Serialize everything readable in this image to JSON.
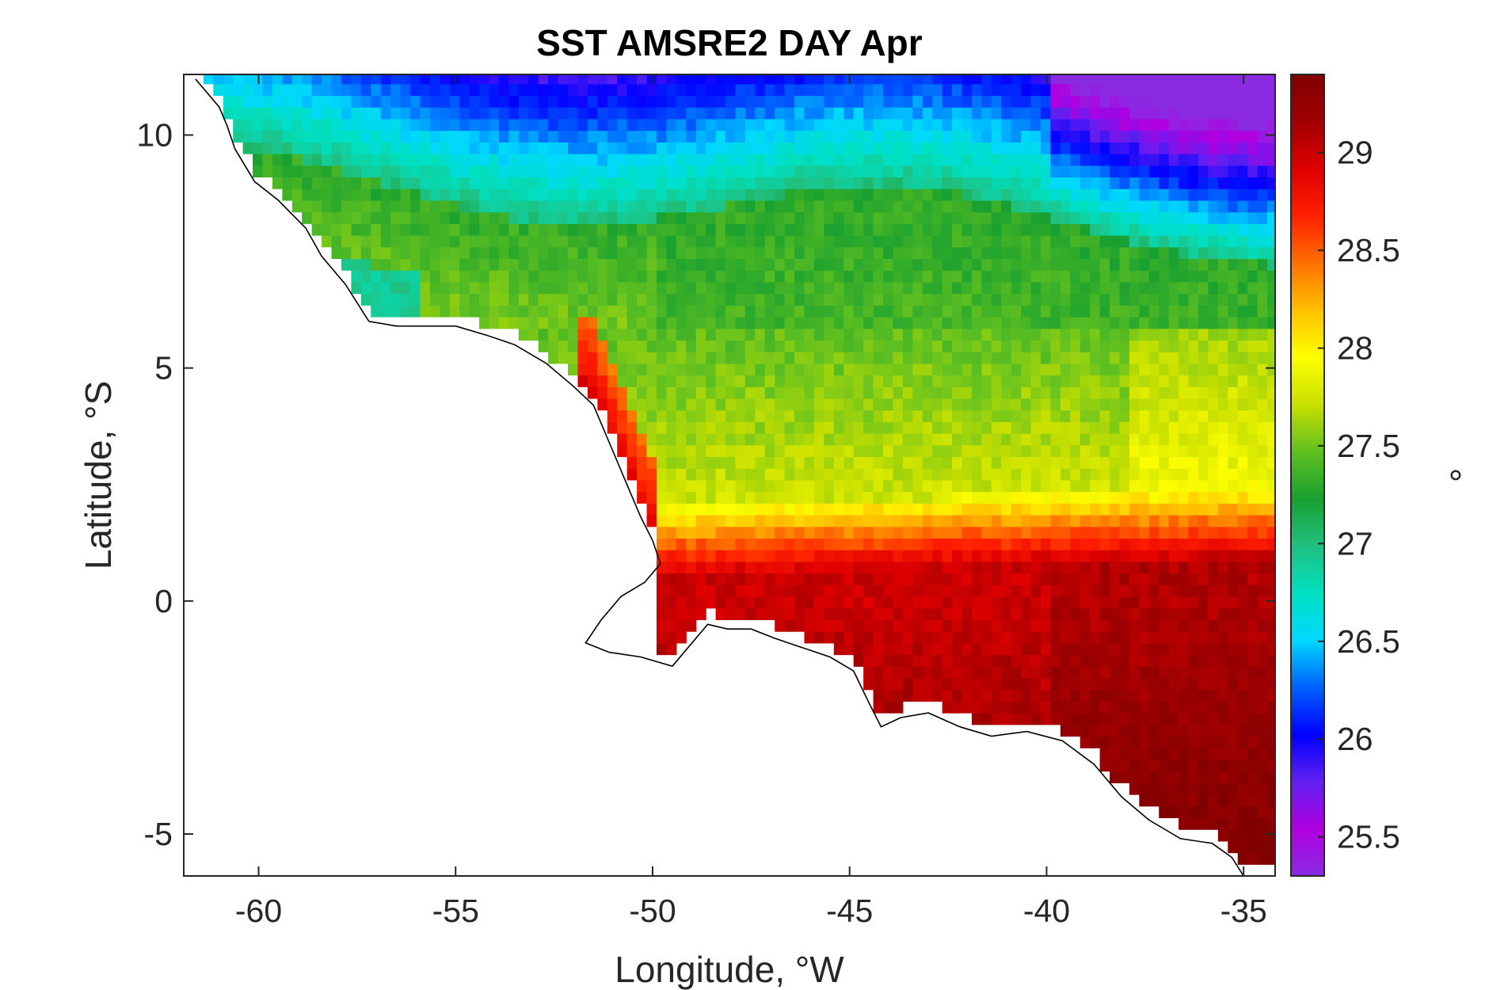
{
  "chart_data": {
    "type": "heatmap",
    "title": "SST AMSRE2 DAY Apr",
    "xlabel": "Longitude, °W",
    "ylabel": "Latitude, °S",
    "xlim": [
      -61.9,
      -34.2
    ],
    "ylim": [
      -5.9,
      11.3
    ],
    "xticks": [
      -60,
      -55,
      -50,
      -45,
      -40,
      -35
    ],
    "yticks": [
      10,
      5,
      0,
      -5
    ],
    "colorbar": {
      "label": "°",
      "range": [
        25.3,
        29.4
      ],
      "ticks": [
        29,
        28.5,
        28,
        27.5,
        27,
        26.5,
        26,
        25.5
      ],
      "colormap": [
        "#8a2be2",
        "#b000e0",
        "#6020f0",
        "#0000ff",
        "#0060ff",
        "#00d8ff",
        "#00e0c0",
        "#20c080",
        "#18a030",
        "#60c020",
        "#c8e000",
        "#ffff00",
        "#ffc000",
        "#ff7000",
        "#ff2000",
        "#e00000",
        "#a00000",
        "#800000"
      ]
    },
    "grid": false,
    "field_description_values": {
      "north_east_min": 25.6,
      "central_band": 27.3,
      "green_band": 27.7,
      "equatorial_warm": 29.0,
      "coastal_max": 29.3
    },
    "coastline_points": [
      [
        -61.6,
        11.2
      ],
      [
        -61.0,
        10.6
      ],
      [
        -60.8,
        10.2
      ],
      [
        -60.6,
        9.7
      ],
      [
        -60.1,
        9.0
      ],
      [
        -59.5,
        8.6
      ],
      [
        -58.8,
        8.0
      ],
      [
        -58.4,
        7.4
      ],
      [
        -57.8,
        6.8
      ],
      [
        -57.2,
        6.0
      ],
      [
        -56.5,
        5.9
      ],
      [
        -55.8,
        5.9
      ],
      [
        -55.0,
        5.9
      ],
      [
        -54.2,
        5.7
      ],
      [
        -53.5,
        5.5
      ],
      [
        -52.7,
        5.1
      ],
      [
        -52.0,
        4.6
      ],
      [
        -51.5,
        4.2
      ],
      [
        -51.2,
        3.6
      ],
      [
        -50.9,
        3.0
      ],
      [
        -50.6,
        2.4
      ],
      [
        -50.3,
        1.8
      ],
      [
        -50.0,
        1.3
      ],
      [
        -49.8,
        0.8
      ],
      [
        -50.2,
        0.4
      ],
      [
        -50.8,
        0.1
      ],
      [
        -51.3,
        -0.4
      ],
      [
        -51.7,
        -0.9
      ],
      [
        -51.1,
        -1.1
      ],
      [
        -50.3,
        -1.2
      ],
      [
        -49.5,
        -1.4
      ],
      [
        -49.0,
        -0.9
      ],
      [
        -48.6,
        -0.5
      ],
      [
        -48.1,
        -0.6
      ],
      [
        -47.5,
        -0.6
      ],
      [
        -46.9,
        -0.8
      ],
      [
        -46.2,
        -1.0
      ],
      [
        -45.5,
        -1.2
      ],
      [
        -44.9,
        -1.5
      ],
      [
        -44.5,
        -2.2
      ],
      [
        -44.2,
        -2.7
      ],
      [
        -43.7,
        -2.5
      ],
      [
        -43.0,
        -2.4
      ],
      [
        -42.2,
        -2.7
      ],
      [
        -41.4,
        -2.9
      ],
      [
        -40.5,
        -2.8
      ],
      [
        -39.6,
        -3.0
      ],
      [
        -38.8,
        -3.5
      ],
      [
        -38.1,
        -4.2
      ],
      [
        -37.4,
        -4.7
      ],
      [
        -36.6,
        -5.1
      ],
      [
        -35.8,
        -5.2
      ],
      [
        -35.3,
        -5.5
      ],
      [
        -35.0,
        -5.9
      ]
    ]
  }
}
